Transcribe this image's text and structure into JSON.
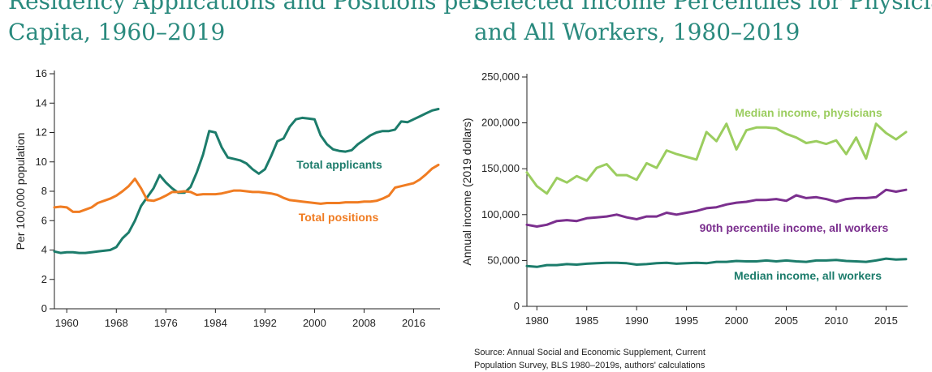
{
  "left_title": {
    "line1": "Residency Applications and Positions per",
    "line2": "Capita, 1960–2019"
  },
  "right_title": {
    "line1": "Selected Income Percentiles for Physicians",
    "line2": "and All Workers, 1980–2019"
  },
  "source": {
    "line1": "Source: Annual Social and Economic Supplement, Current",
    "line2": "Population Survey, BLS 1980–2019s, authors' calculations"
  },
  "colors": {
    "teal": "#1c7c6b",
    "orange": "#f07c22",
    "lightgreen": "#9bcd5f",
    "purple": "#7b2f8e",
    "axis": "#222222"
  },
  "chart_data": [
    {
      "type": "line",
      "ylabel": "Per 100,000 population",
      "xlabel": "",
      "xlim": [
        1958,
        2020
      ],
      "ylim": [
        0,
        16
      ],
      "xticks": [
        "1960",
        "1968",
        "1976",
        "1984",
        "1992",
        "2000",
        "2008",
        "2016"
      ],
      "yticks": [
        "0",
        "2",
        "4",
        "6",
        "8",
        "10",
        "12",
        "14",
        "16"
      ],
      "grid": false,
      "series": [
        {
          "name": "Total applicants",
          "color": "#1c7c6b",
          "x": [
            1958,
            1959,
            1960,
            1961,
            1962,
            1963,
            1964,
            1965,
            1966,
            1967,
            1968,
            1969,
            1970,
            1971,
            1972,
            1973,
            1974,
            1975,
            1976,
            1977,
            1978,
            1979,
            1980,
            1981,
            1982,
            1983,
            1984,
            1985,
            1986,
            1987,
            1988,
            1989,
            1990,
            1991,
            1992,
            1993,
            1994,
            1995,
            1996,
            1997,
            1998,
            1999,
            2000,
            2001,
            2002,
            2003,
            2004,
            2005,
            2006,
            2007,
            2008,
            2009,
            2010,
            2011,
            2012,
            2013,
            2014,
            2015,
            2016,
            2017,
            2018,
            2019,
            2020
          ],
          "y": [
            3.9,
            3.8,
            3.85,
            3.85,
            3.8,
            3.8,
            3.85,
            3.9,
            3.95,
            4.0,
            4.2,
            4.8,
            5.2,
            6.0,
            7.0,
            7.6,
            8.2,
            9.1,
            8.6,
            8.2,
            7.9,
            7.9,
            8.3,
            9.3,
            10.5,
            12.1,
            12.0,
            11.0,
            10.3,
            10.2,
            10.1,
            9.9,
            9.5,
            9.2,
            9.5,
            10.4,
            11.4,
            11.6,
            12.4,
            12.9,
            13.0,
            12.95,
            12.9,
            11.8,
            11.2,
            10.85,
            10.75,
            10.7,
            10.8,
            11.2,
            11.5,
            11.8,
            12.0,
            12.1,
            12.1,
            12.2,
            12.75,
            12.7,
            12.9,
            13.1,
            13.3,
            13.5,
            13.6
          ]
        },
        {
          "name": "Total positions",
          "color": "#f07c22",
          "x": [
            1958,
            1959,
            1960,
            1961,
            1962,
            1963,
            1964,
            1965,
            1966,
            1967,
            1968,
            1969,
            1970,
            1971,
            1972,
            1973,
            1974,
            1975,
            1976,
            1977,
            1978,
            1979,
            1980,
            1981,
            1982,
            1983,
            1984,
            1985,
            1986,
            1987,
            1988,
            1989,
            1990,
            1991,
            1992,
            1993,
            1994,
            1995,
            1996,
            1997,
            1998,
            1999,
            2000,
            2001,
            2002,
            2003,
            2004,
            2005,
            2006,
            2007,
            2008,
            2009,
            2010,
            2011,
            2012,
            2013,
            2014,
            2015,
            2016,
            2017,
            2018,
            2019,
            2020
          ],
          "y": [
            6.9,
            6.95,
            6.9,
            6.6,
            6.6,
            6.75,
            6.9,
            7.2,
            7.35,
            7.5,
            7.7,
            8.0,
            8.35,
            8.85,
            8.2,
            7.4,
            7.35,
            7.5,
            7.7,
            7.95,
            7.95,
            8.0,
            7.95,
            7.75,
            7.8,
            7.8,
            7.8,
            7.85,
            7.95,
            8.05,
            8.05,
            8.0,
            7.95,
            7.95,
            7.9,
            7.85,
            7.75,
            7.55,
            7.4,
            7.35,
            7.3,
            7.25,
            7.2,
            7.15,
            7.2,
            7.2,
            7.2,
            7.25,
            7.25,
            7.25,
            7.3,
            7.3,
            7.35,
            7.5,
            7.7,
            8.25,
            8.35,
            8.45,
            8.55,
            8.8,
            9.15,
            9.55,
            9.8
          ]
        }
      ],
      "annotations": [
        "Total applicants",
        "Total positions"
      ]
    },
    {
      "type": "line",
      "ylabel": "Annual income (2019 dollars)",
      "xlabel": "",
      "xlim": [
        1979,
        2017
      ],
      "ylim": [
        0,
        250000
      ],
      "xticks": [
        "1980",
        "1985",
        "1990",
        "1995",
        "2000",
        "2005",
        "2010",
        "2015"
      ],
      "yticks": [
        "0",
        "50,000",
        "100,000",
        "150,000",
        "200,000",
        "250,000"
      ],
      "grid": false,
      "series": [
        {
          "name": "Median income, physicians",
          "color": "#9bcd5f",
          "x": [
            1979,
            1980,
            1981,
            1982,
            1983,
            1984,
            1985,
            1986,
            1987,
            1988,
            1989,
            1990,
            1991,
            1992,
            1993,
            1994,
            1995,
            1996,
            1997,
            1998,
            1999,
            2000,
            2001,
            2002,
            2003,
            2004,
            2005,
            2006,
            2007,
            2008,
            2009,
            2010,
            2011,
            2012,
            2013,
            2014,
            2015,
            2016,
            2017
          ],
          "y": [
            146000,
            131000,
            123000,
            140000,
            135000,
            142000,
            137000,
            151000,
            155000,
            143000,
            143000,
            138000,
            156000,
            151000,
            170000,
            166000,
            163000,
            160000,
            190000,
            180000,
            199000,
            171000,
            192000,
            195000,
            195000,
            194000,
            188000,
            184000,
            178000,
            180000,
            177000,
            181000,
            166000,
            184000,
            161000,
            199000,
            189000,
            182000,
            190000
          ]
        },
        {
          "name": "90th percentile income, all workers",
          "color": "#7b2f8e",
          "x": [
            1979,
            1980,
            1981,
            1982,
            1983,
            1984,
            1985,
            1986,
            1987,
            1988,
            1989,
            1990,
            1991,
            1992,
            1993,
            1994,
            1995,
            1996,
            1997,
            1998,
            1999,
            2000,
            2001,
            2002,
            2003,
            2004,
            2005,
            2006,
            2007,
            2008,
            2009,
            2010,
            2011,
            2012,
            2013,
            2014,
            2015,
            2016,
            2017
          ],
          "y": [
            89000,
            87000,
            89000,
            93000,
            94000,
            93000,
            96000,
            97000,
            98000,
            100000,
            97000,
            95000,
            98000,
            98000,
            102000,
            100000,
            102000,
            104000,
            107000,
            108000,
            111000,
            113000,
            114000,
            116000,
            116000,
            117000,
            115000,
            121000,
            118000,
            119000,
            117000,
            114000,
            117000,
            118000,
            118000,
            119000,
            127000,
            125000,
            127000
          ]
        },
        {
          "name": "Median income, all workers",
          "color": "#1c7c6b",
          "x": [
            1979,
            1980,
            1981,
            1982,
            1983,
            1984,
            1985,
            1986,
            1987,
            1988,
            1989,
            1990,
            1991,
            1992,
            1993,
            1994,
            1995,
            1996,
            1997,
            1998,
            1999,
            2000,
            2001,
            2002,
            2003,
            2004,
            2005,
            2006,
            2007,
            2008,
            2009,
            2010,
            2011,
            2012,
            2013,
            2014,
            2015,
            2016,
            2017
          ],
          "y": [
            44000,
            43000,
            45000,
            45000,
            46000,
            45500,
            46500,
            47000,
            47500,
            47500,
            47000,
            45500,
            46000,
            47000,
            47500,
            46500,
            47000,
            47500,
            47000,
            48500,
            48500,
            49500,
            49000,
            49000,
            50000,
            49000,
            50000,
            49000,
            48500,
            50000,
            50000,
            50500,
            49500,
            49000,
            48500,
            50000,
            52000,
            51000,
            51500
          ]
        }
      ],
      "annotations": [
        "Median income, physicians",
        "90th percentile income, all workers",
        "Median income, all workers"
      ]
    }
  ]
}
